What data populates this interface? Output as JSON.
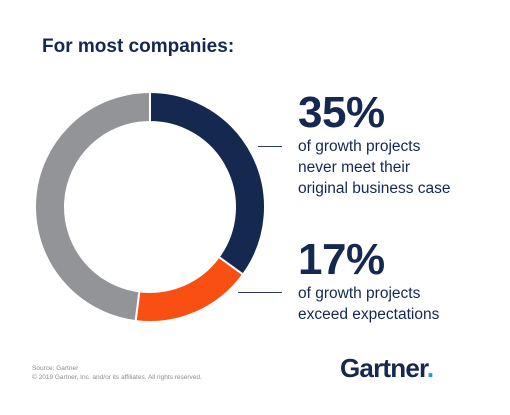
{
  "title": "For most companies:",
  "chart_data": {
    "type": "pie",
    "variant": "donut",
    "slices": [
      {
        "label": "35%",
        "value": 35,
        "color": "#142850"
      },
      {
        "label": "17%",
        "value": 17,
        "color": "#fa4f12"
      },
      {
        "label": "",
        "value": 48,
        "color": "#929497"
      }
    ]
  },
  "stats": [
    {
      "value": "35%",
      "lines": [
        "of growth projects",
        "never meet their",
        "original business case"
      ]
    },
    {
      "value": "17%",
      "lines": [
        "of growth projects",
        "exceed expectations"
      ]
    }
  ],
  "source": {
    "line1": "Source: Gartner",
    "line2": "© 2019 Gartner, Inc. and/or its affiliates. All rights reserved."
  },
  "logo": {
    "text": "Gartner",
    "dot": "."
  }
}
